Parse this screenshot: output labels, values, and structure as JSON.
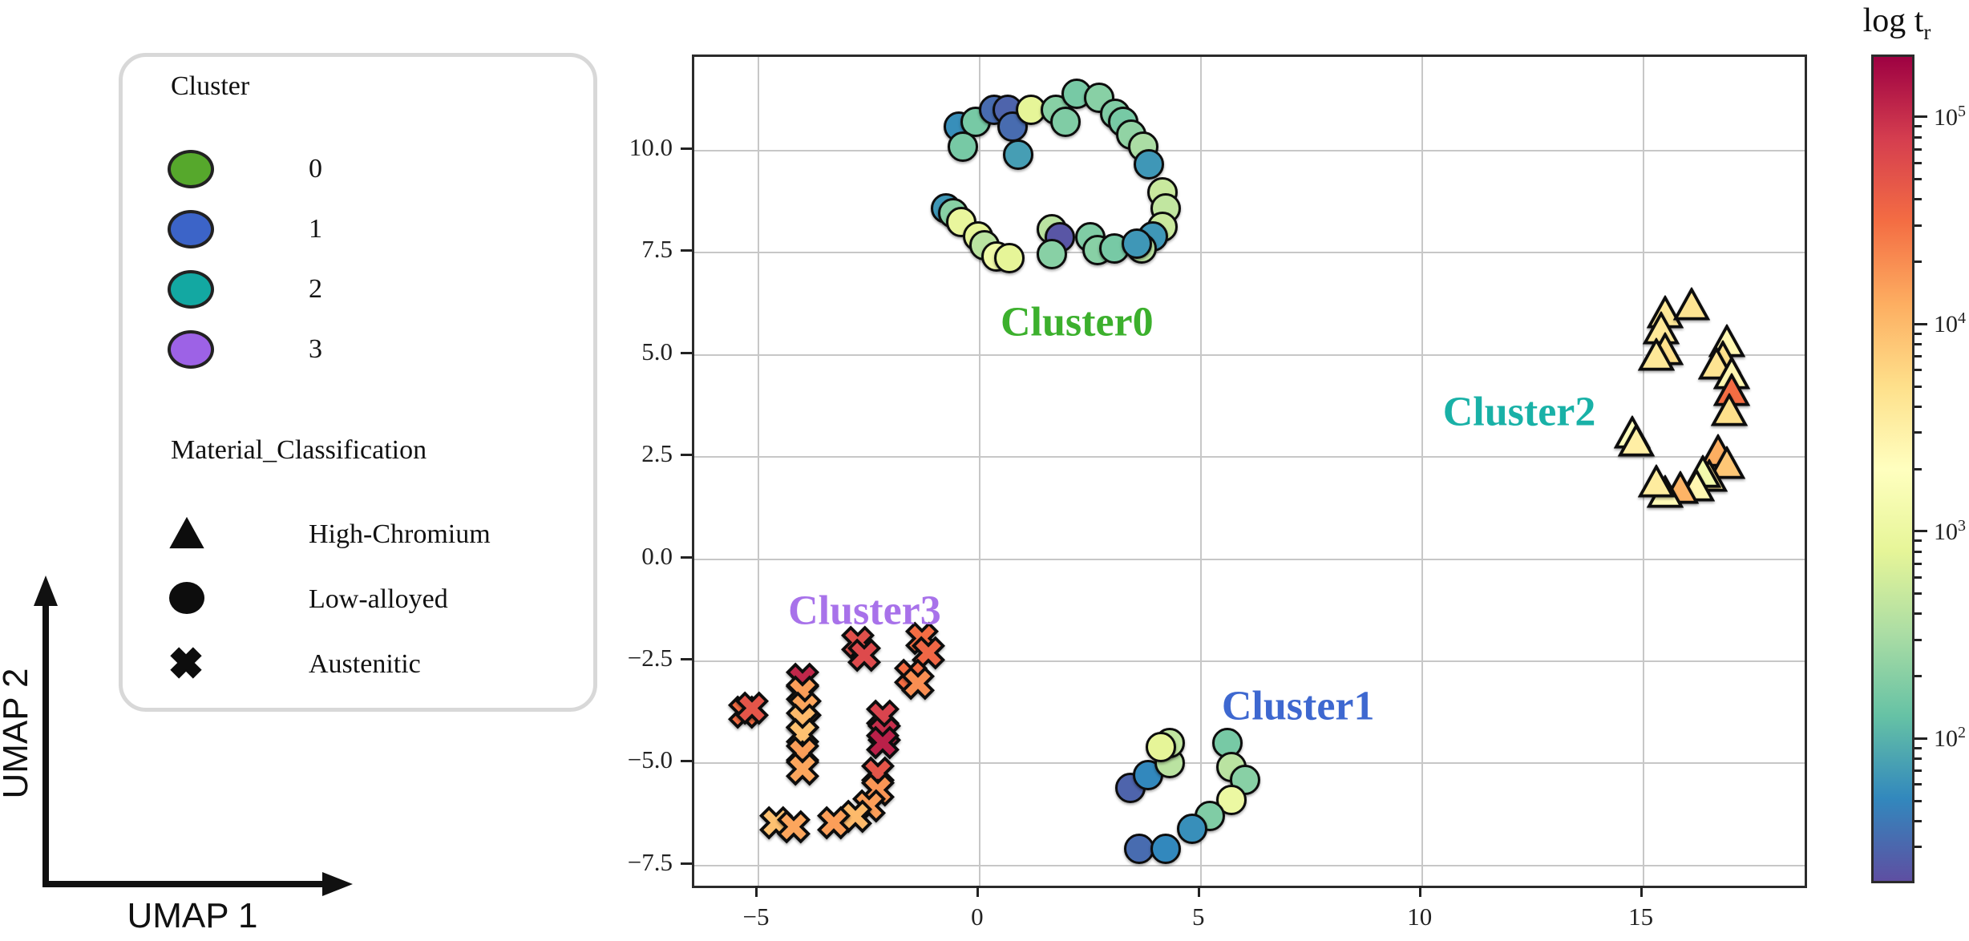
{
  "legend": {
    "cluster_title": "Cluster",
    "clusters": [
      {
        "label": "0",
        "color": "#56a82c"
      },
      {
        "label": "1",
        "color": "#3c64c8"
      },
      {
        "label": "2",
        "color": "#13a8a2"
      },
      {
        "label": "3",
        "color": "#9d62e6"
      }
    ],
    "material_title": "Material_Classification",
    "materials": [
      {
        "label": "High-Chromium",
        "marker": "triangle"
      },
      {
        "label": "Low-alloyed",
        "marker": "circle"
      },
      {
        "label": "Austenitic",
        "marker": "cross"
      }
    ]
  },
  "axes": {
    "x_label": "UMAP 1",
    "y_label": "UMAP 2"
  },
  "colorbar": {
    "title_prefix": "log t",
    "title_sub": "r",
    "log_min": 1.3,
    "log_max": 5.3,
    "major_tick_exponents": [
      5,
      4,
      3,
      2
    ],
    "spectral_r_stops": [
      [
        0.0,
        "#5e4fa2"
      ],
      [
        0.1,
        "#3288bd"
      ],
      [
        0.2,
        "#66c2a5"
      ],
      [
        0.3,
        "#abdda4"
      ],
      [
        0.4,
        "#e6f598"
      ],
      [
        0.5,
        "#ffffbf"
      ],
      [
        0.6,
        "#fee08b"
      ],
      [
        0.7,
        "#fdae61"
      ],
      [
        0.8,
        "#f46d43"
      ],
      [
        0.9,
        "#d53e4f"
      ],
      [
        1.0,
        "#9e0142"
      ]
    ]
  },
  "chart_data": {
    "type": "scatter",
    "xlabel": "UMAP 1",
    "ylabel": "UMAP 2",
    "x_range": [
      -6.45,
      18.65
    ],
    "y_range": [
      -8.0,
      12.3
    ],
    "x_ticks": [
      {
        "v": -5,
        "label": "−5"
      },
      {
        "v": 0,
        "label": "0"
      },
      {
        "v": 5,
        "label": "5"
      },
      {
        "v": 10,
        "label": "10"
      },
      {
        "v": 15,
        "label": "15"
      }
    ],
    "y_ticks": [
      {
        "v": 10,
        "label": "10.0"
      },
      {
        "v": 7.5,
        "label": "7.5"
      },
      {
        "v": 5,
        "label": "5.0"
      },
      {
        "v": 2.5,
        "label": "2.5"
      },
      {
        "v": 0,
        "label": "0.0"
      },
      {
        "v": -2.5,
        "label": "−2.5"
      },
      {
        "v": -5,
        "label": "−5.0"
      },
      {
        "v": -7.5,
        "label": "−7.5"
      }
    ],
    "grid": true,
    "color_value": "log10 of rupture time t_r, mapped through reversed Spectral colormap",
    "clusters": [
      {
        "name": "Cluster0",
        "label_color": "#3cb02d",
        "label_pos": [
          2.2,
          5.8
        ],
        "material": "Low-alloyed",
        "marker": "circle",
        "points": [
          [
            -0.47,
            10.6,
            1.75
          ],
          [
            -0.09,
            10.7,
            2.2
          ],
          [
            0.33,
            11.0,
            1.5
          ],
          [
            0.63,
            11.0,
            1.45
          ],
          [
            0.74,
            10.6,
            1.5
          ],
          [
            1.16,
            11.0,
            2.9
          ],
          [
            1.72,
            11.0,
            2.3
          ],
          [
            1.94,
            10.7,
            2.25
          ],
          [
            2.19,
            11.4,
            2.2
          ],
          [
            2.7,
            11.3,
            2.3
          ],
          [
            3.06,
            10.9,
            2.25
          ],
          [
            3.24,
            10.7,
            2.2
          ],
          [
            3.42,
            10.4,
            2.35
          ],
          [
            3.7,
            10.1,
            2.5
          ],
          [
            3.82,
            9.67,
            1.8
          ],
          [
            4.13,
            8.98,
            2.7
          ],
          [
            4.2,
            8.59,
            2.65
          ],
          [
            4.13,
            8.13,
            2.7
          ],
          [
            3.91,
            7.9,
            1.8
          ],
          [
            3.67,
            7.6,
            2.6
          ],
          [
            -0.38,
            10.1,
            2.2
          ],
          [
            0.87,
            9.9,
            1.85
          ],
          [
            -0.76,
            8.59,
            1.8
          ],
          [
            -0.6,
            8.47,
            2.3
          ],
          [
            -0.42,
            8.25,
            2.95
          ],
          [
            -0.04,
            7.9,
            2.9
          ],
          [
            0.11,
            7.68,
            2.6
          ],
          [
            0.38,
            7.41,
            3.05
          ],
          [
            0.67,
            7.37,
            2.9
          ],
          [
            1.63,
            8.08,
            2.6
          ],
          [
            1.81,
            7.88,
            1.35
          ],
          [
            1.63,
            7.47,
            2.3
          ],
          [
            2.5,
            7.88,
            2.25
          ],
          [
            2.66,
            7.56,
            2.3
          ],
          [
            3.04,
            7.6,
            2.2
          ],
          [
            3.55,
            7.72,
            1.8
          ]
        ]
      },
      {
        "name": "Cluster1",
        "label_color": "#3e68d0",
        "label_pos": [
          7.2,
          -3.6
        ],
        "material": "Low-alloyed",
        "marker": "circle",
        "points": [
          [
            3.4,
            -5.6,
            1.45
          ],
          [
            3.8,
            -5.3,
            1.7
          ],
          [
            4.3,
            -5.0,
            2.6
          ],
          [
            4.3,
            -4.5,
            2.65
          ],
          [
            4.1,
            -4.6,
            2.9
          ],
          [
            5.6,
            -4.5,
            2.2
          ],
          [
            5.7,
            -5.1,
            2.6
          ],
          [
            6.0,
            -5.4,
            2.3
          ],
          [
            5.7,
            -5.9,
            3.0
          ],
          [
            5.2,
            -6.3,
            2.25
          ],
          [
            4.8,
            -6.6,
            1.75
          ],
          [
            3.6,
            -7.1,
            1.5
          ],
          [
            4.2,
            -7.1,
            1.7
          ]
        ]
      },
      {
        "name": "Cluster2",
        "label_color": "#19b1a7",
        "label_pos": [
          12.2,
          3.6
        ],
        "material": "High-Chromium",
        "marker": "triangle",
        "points": [
          [
            15.5,
            6.0,
            3.6
          ],
          [
            16.1,
            6.2,
            3.65
          ],
          [
            15.4,
            5.6,
            3.6
          ],
          [
            15.5,
            5.1,
            3.7
          ],
          [
            15.3,
            4.95,
            3.6
          ],
          [
            16.9,
            5.3,
            3.4
          ],
          [
            16.8,
            4.9,
            3.7
          ],
          [
            16.65,
            4.75,
            3.65
          ],
          [
            17.0,
            4.5,
            3.4
          ],
          [
            17.0,
            4.1,
            4.5
          ],
          [
            16.95,
            3.6,
            3.7
          ],
          [
            14.75,
            3.05,
            3.3
          ],
          [
            14.85,
            2.85,
            3.5
          ],
          [
            16.7,
            2.6,
            4.1
          ],
          [
            16.9,
            2.3,
            3.9
          ],
          [
            16.5,
            2.0,
            3.6
          ],
          [
            16.35,
            2.1,
            3.1
          ],
          [
            16.2,
            1.75,
            3.4
          ],
          [
            15.85,
            1.7,
            4.05
          ],
          [
            15.5,
            1.6,
            3.35
          ],
          [
            15.3,
            1.85,
            3.55
          ]
        ]
      },
      {
        "name": "Cluster3",
        "label_color": "#a872ea",
        "label_pos": [
          -2.6,
          -1.26
        ],
        "material": "Austenitic",
        "marker": "cross",
        "points": [
          [
            -5.3,
            -3.8,
            4.5
          ],
          [
            -5.15,
            -3.7,
            4.7
          ],
          [
            -4.0,
            -3.0,
            5.05
          ],
          [
            -4.0,
            -3.3,
            4.2
          ],
          [
            -3.95,
            -3.7,
            4.15
          ],
          [
            -4.0,
            -4.0,
            4.0
          ],
          [
            -4.0,
            -4.35,
            3.95
          ],
          [
            -4.0,
            -4.8,
            4.2
          ],
          [
            -4.0,
            -5.2,
            4.15
          ],
          [
            -2.75,
            -2.1,
            4.75
          ],
          [
            -2.6,
            -2.4,
            4.8
          ],
          [
            -1.3,
            -2.0,
            4.5
          ],
          [
            -1.15,
            -2.35,
            4.55
          ],
          [
            -1.55,
            -2.9,
            4.5
          ],
          [
            -1.4,
            -3.1,
            4.3
          ],
          [
            -2.2,
            -3.9,
            4.85
          ],
          [
            -2.15,
            -4.3,
            5.0
          ],
          [
            -2.2,
            -4.55,
            5.1
          ],
          [
            -2.3,
            -5.3,
            4.7
          ],
          [
            -2.3,
            -5.7,
            4.25
          ],
          [
            -2.5,
            -6.1,
            4.2
          ],
          [
            -2.8,
            -6.35,
            4.0
          ],
          [
            -4.6,
            -6.5,
            3.95
          ],
          [
            -4.2,
            -6.6,
            4.15
          ],
          [
            -3.3,
            -6.5,
            4.2
          ]
        ]
      }
    ]
  }
}
